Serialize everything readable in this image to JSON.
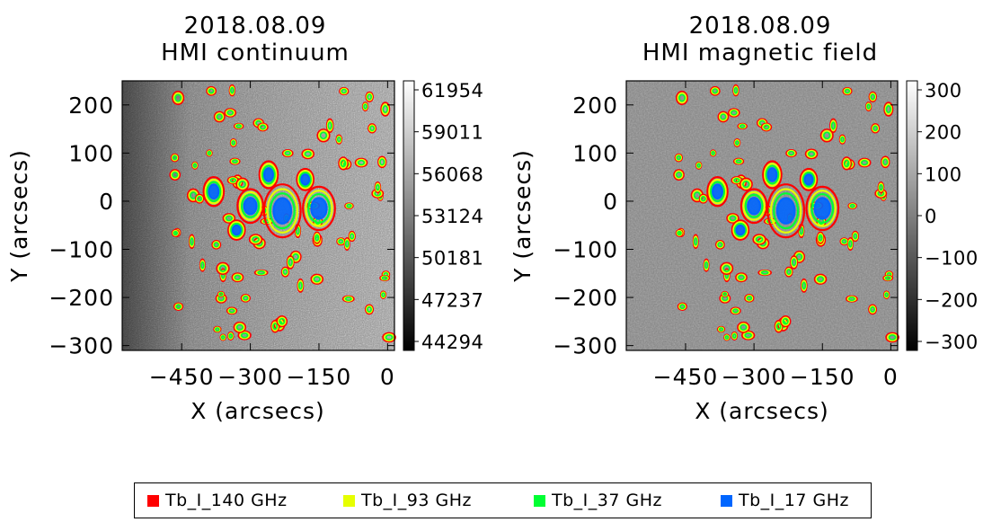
{
  "panels": [
    {
      "date": "2018.08.09",
      "title": "HMI continuum",
      "xlabel": "X (arcsecs)",
      "ylabel": "Y (arcsecs)",
      "colorbar_ticks": [
        "61954",
        "59011",
        "56068",
        "53124",
        "50181",
        "47237",
        "44294"
      ]
    },
    {
      "date": "2018.08.09",
      "title": "HMI magnetic field",
      "xlabel": "X (arcsecs)",
      "ylabel": "Y (arcsecs)",
      "colorbar_ticks": [
        "300",
        "200",
        "100",
        "0",
        "−100",
        "−200",
        "−300"
      ]
    }
  ],
  "legend": [
    {
      "label": "Tb_I_140 GHz",
      "color": "#ff0000"
    },
    {
      "label": "Tb_I_93 GHz",
      "color": "#e6ff00"
    },
    {
      "label": "Tb_I_37 GHz",
      "color": "#00ff33"
    },
    {
      "label": "Tb_I_17 GHz",
      "color": "#0066ff"
    }
  ],
  "chart_data": [
    {
      "type": "heatmap",
      "title": "2018.08.09 HMI continuum",
      "xlabel": "X (arcsecs)",
      "ylabel": "Y (arcsecs)",
      "xlim": [
        -580,
        15
      ],
      "ylim": [
        -310,
        250
      ],
      "x_ticks": [
        "−450",
        "−300",
        "−150",
        "0"
      ],
      "y_ticks": [
        "200",
        "100",
        "0",
        "−100",
        "−200",
        "−300"
      ],
      "colorbar_range": [
        44294,
        61954
      ],
      "colormap": "grayscale",
      "contour_levels": [
        "Tb_I_140 GHz",
        "Tb_I_93 GHz",
        "Tb_I_37 GHz",
        "Tb_I_17 GHz"
      ]
    },
    {
      "type": "heatmap",
      "title": "2018.08.09 HMI magnetic field",
      "xlabel": "X (arcsecs)",
      "ylabel": "Y (arcsecs)",
      "xlim": [
        -580,
        15
      ],
      "ylim": [
        -310,
        250
      ],
      "x_ticks": [
        "−450",
        "−300",
        "−150",
        "0"
      ],
      "y_ticks": [
        "200",
        "100",
        "0",
        "−100",
        "−200",
        "−300"
      ],
      "colorbar_range": [
        -300,
        300
      ],
      "colormap": "grayscale",
      "contour_levels": [
        "Tb_I_140 GHz",
        "Tb_I_93 GHz",
        "Tb_I_37 GHz",
        "Tb_I_17 GHz"
      ]
    }
  ]
}
